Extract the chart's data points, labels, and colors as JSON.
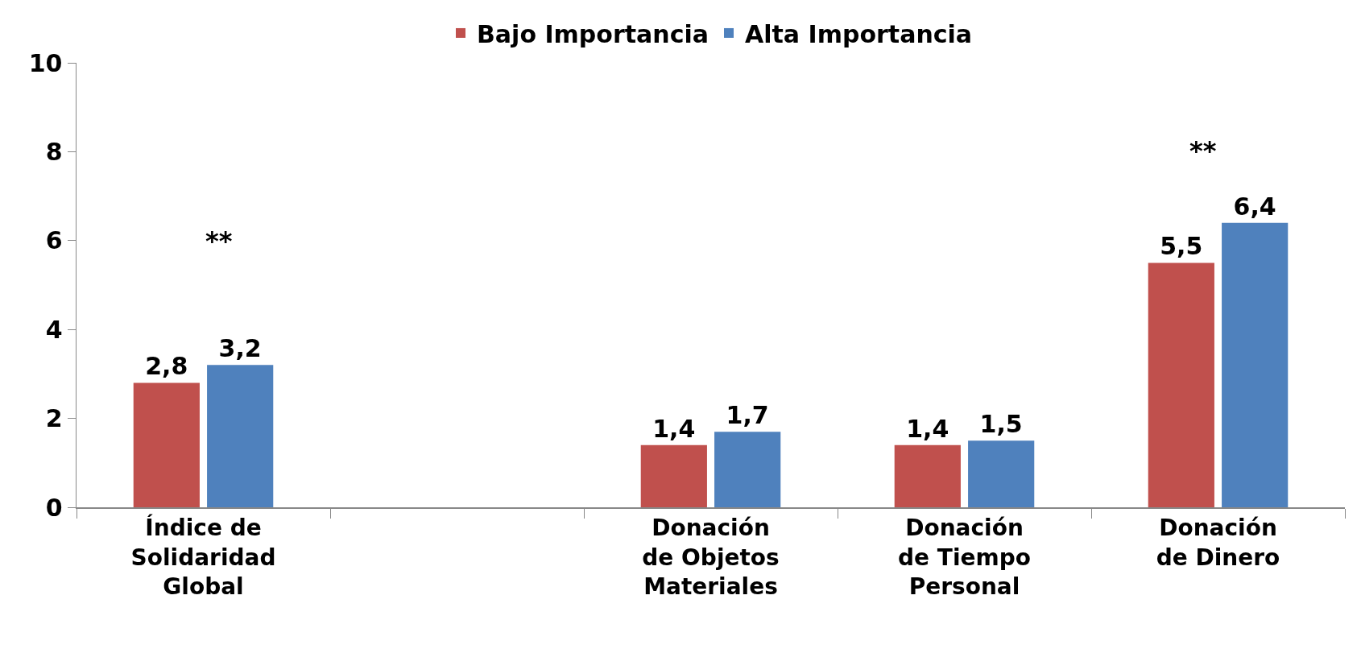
{
  "chart_data": {
    "type": "bar",
    "categories": [
      "Índice de Solidaridad Global",
      null,
      "Donación de Objetos Materiales",
      "Donación de Tiempo Personal",
      "Donación de Dinero"
    ],
    "series": [
      {
        "name": "Bajo Importancia",
        "color": "#c0504d",
        "values": [
          2.8,
          null,
          1.4,
          1.4,
          5.5
        ],
        "value_labels": [
          "2,8",
          null,
          "1,4",
          "1,4",
          "5,5"
        ]
      },
      {
        "name": "Alta Importancia",
        "color": "#4f81bd",
        "values": [
          3.2,
          null,
          1.7,
          1.5,
          6.4
        ],
        "value_labels": [
          "3,2",
          null,
          "1,7",
          "1,5",
          "6,4"
        ]
      }
    ],
    "ylim": [
      0,
      10
    ],
    "yticks": [
      0,
      2,
      4,
      6,
      8,
      10
    ],
    "grid": false,
    "legend": "top",
    "annotations": [
      "**",
      "**"
    ]
  }
}
